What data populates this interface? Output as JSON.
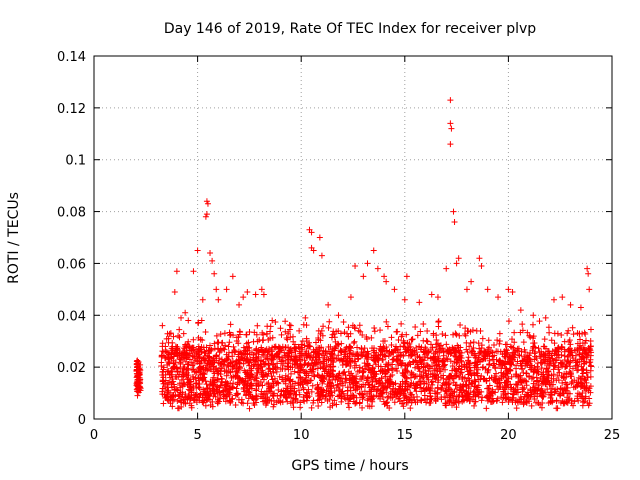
{
  "chart_data": {
    "type": "scatter",
    "title": "Day 146 of 2019, Rate Of TEC Index for receiver plvp",
    "xlabel": "GPS time / hours",
    "ylabel": "ROTI / TECUs",
    "xlim": [
      0,
      25
    ],
    "ylim": [
      0,
      0.14
    ],
    "x_ticks": [
      "0",
      "5",
      "10",
      "15",
      "20",
      "25"
    ],
    "y_ticks": [
      "0",
      "0.02",
      "0.04",
      "0.06",
      "0.08",
      "0.1",
      "0.12",
      "0.14"
    ],
    "grid": true,
    "marker": "+",
    "color": "#ff0000",
    "series": [
      {
        "name": "ROTI",
        "points": [
          [
            2.05,
            0.013
          ],
          [
            2.1,
            0.017
          ],
          [
            2.15,
            0.022
          ],
          [
            2.2,
            0.015
          ],
          [
            2.1,
            0.009
          ],
          [
            2.2,
            0.019
          ],
          [
            2.15,
            0.012
          ],
          [
            3.3,
            0.036
          ],
          [
            3.3,
            0.028
          ],
          [
            3.35,
            0.006
          ],
          [
            3.6,
            0.031
          ],
          [
            3.9,
            0.049
          ],
          [
            4.0,
            0.057
          ],
          [
            4.2,
            0.039
          ],
          [
            4.4,
            0.041
          ],
          [
            4.8,
            0.057
          ],
          [
            5.0,
            0.065
          ],
          [
            5.2,
            0.038
          ],
          [
            5.25,
            0.046
          ],
          [
            5.4,
            0.078
          ],
          [
            5.45,
            0.084
          ],
          [
            5.5,
            0.083
          ],
          [
            5.45,
            0.079
          ],
          [
            5.6,
            0.064
          ],
          [
            5.7,
            0.061
          ],
          [
            5.8,
            0.056
          ],
          [
            5.9,
            0.05
          ],
          [
            6.0,
            0.046
          ],
          [
            6.4,
            0.05
          ],
          [
            6.7,
            0.055
          ],
          [
            7.0,
            0.044
          ],
          [
            7.2,
            0.047
          ],
          [
            7.4,
            0.049
          ],
          [
            7.8,
            0.048
          ],
          [
            8.1,
            0.05
          ],
          [
            8.2,
            0.048
          ],
          [
            8.6,
            0.038
          ],
          [
            9.0,
            0.035
          ],
          [
            9.5,
            0.036
          ],
          [
            9.9,
            0.034
          ],
          [
            10.2,
            0.039
          ],
          [
            10.4,
            0.073
          ],
          [
            10.5,
            0.072
          ],
          [
            10.5,
            0.066
          ],
          [
            10.6,
            0.065
          ],
          [
            10.9,
            0.07
          ],
          [
            11.0,
            0.063
          ],
          [
            11.3,
            0.044
          ],
          [
            11.8,
            0.04
          ],
          [
            12.4,
            0.047
          ],
          [
            12.6,
            0.059
          ],
          [
            13.0,
            0.055
          ],
          [
            13.2,
            0.06
          ],
          [
            13.5,
            0.065
          ],
          [
            13.7,
            0.058
          ],
          [
            14.0,
            0.055
          ],
          [
            14.1,
            0.053
          ],
          [
            14.5,
            0.05
          ],
          [
            15.0,
            0.046
          ],
          [
            15.1,
            0.055
          ],
          [
            15.7,
            0.045
          ],
          [
            16.3,
            0.048
          ],
          [
            16.6,
            0.047
          ],
          [
            17.0,
            0.058
          ],
          [
            17.2,
            0.123
          ],
          [
            17.2,
            0.114
          ],
          [
            17.25,
            0.112
          ],
          [
            17.2,
            0.106
          ],
          [
            17.35,
            0.08
          ],
          [
            17.4,
            0.076
          ],
          [
            17.5,
            0.06
          ],
          [
            17.6,
            0.062
          ],
          [
            18.0,
            0.05
          ],
          [
            18.2,
            0.053
          ],
          [
            18.6,
            0.062
          ],
          [
            18.7,
            0.059
          ],
          [
            19.0,
            0.05
          ],
          [
            19.5,
            0.047
          ],
          [
            20.0,
            0.05
          ],
          [
            20.2,
            0.049
          ],
          [
            20.6,
            0.042
          ],
          [
            21.2,
            0.04
          ],
          [
            21.8,
            0.039
          ],
          [
            22.2,
            0.046
          ],
          [
            22.6,
            0.047
          ],
          [
            23.0,
            0.044
          ],
          [
            23.5,
            0.043
          ],
          [
            23.8,
            0.058
          ],
          [
            23.85,
            0.056
          ],
          [
            23.9,
            0.05
          ]
        ]
      }
    ]
  }
}
